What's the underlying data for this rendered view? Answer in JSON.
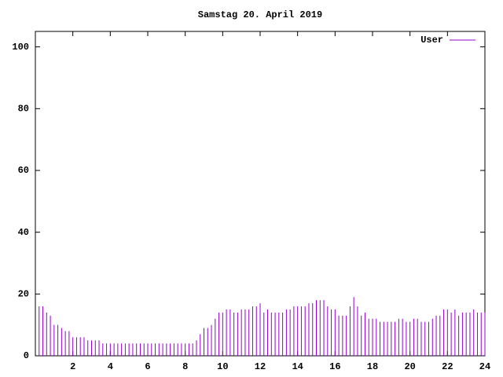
{
  "chart_data": {
    "type": "impulses",
    "title": "Samstag 20. April 2019",
    "x": [
      0.2,
      0.4,
      0.6,
      0.8,
      1.0,
      1.2,
      1.4,
      1.6,
      1.8,
      2.0,
      2.2,
      2.4,
      2.6,
      2.8,
      3.0,
      3.2,
      3.4,
      3.6,
      3.8,
      4.0,
      4.2,
      4.4,
      4.6,
      4.8,
      5.0,
      5.2,
      5.4,
      5.6,
      5.8,
      6.0,
      6.2,
      6.4,
      6.6,
      6.8,
      7.0,
      7.2,
      7.4,
      7.6,
      7.8,
      8.0,
      8.2,
      8.4,
      8.6,
      8.8,
      9.0,
      9.2,
      9.4,
      9.6,
      9.8,
      10.0,
      10.2,
      10.4,
      10.6,
      10.8,
      11.0,
      11.2,
      11.4,
      11.6,
      11.8,
      12.0,
      12.2,
      12.4,
      12.6,
      12.8,
      13.0,
      13.2,
      13.4,
      13.6,
      13.8,
      14.0,
      14.2,
      14.4,
      14.6,
      14.8,
      15.0,
      15.2,
      15.4,
      15.6,
      15.8,
      16.0,
      16.2,
      16.4,
      16.6,
      16.8,
      17.0,
      17.2,
      17.4,
      17.6,
      17.8,
      18.0,
      18.2,
      18.4,
      18.6,
      18.8,
      19.0,
      19.2,
      19.4,
      19.6,
      19.8,
      20.0,
      20.2,
      20.4,
      20.6,
      20.8,
      21.0,
      21.2,
      21.4,
      21.6,
      21.8,
      22.0,
      22.2,
      22.4,
      22.6,
      22.8,
      23.0,
      23.2,
      23.4,
      23.6,
      23.8,
      24.0
    ],
    "series": [
      {
        "name": "User",
        "color": "#9400d3",
        "values": [
          16,
          16,
          14,
          13,
          10,
          10,
          9,
          8,
          8,
          6,
          6,
          6,
          6,
          5,
          5,
          5,
          5,
          4,
          4,
          4,
          4,
          4,
          4,
          4,
          4,
          4,
          4,
          4,
          4,
          4,
          4,
          4,
          4,
          4,
          4,
          4,
          4,
          4,
          4,
          4,
          4,
          4,
          5,
          7,
          9,
          9,
          10,
          12,
          14,
          14,
          15,
          15,
          14,
          14,
          15,
          15,
          15,
          16,
          16,
          17,
          14,
          15,
          14,
          14,
          14,
          14,
          15,
          15,
          16,
          16,
          16,
          16,
          17,
          17,
          18,
          18,
          18,
          16,
          15,
          15,
          13,
          13,
          13,
          16,
          19,
          16,
          13,
          14,
          12,
          12,
          12,
          11,
          11,
          11,
          11,
          11,
          12,
          12,
          11,
          11,
          12,
          12,
          11,
          11,
          11,
          12,
          13,
          13,
          15,
          15,
          14,
          15,
          13,
          14,
          14,
          14,
          15,
          14,
          14,
          14
        ]
      }
    ],
    "xlim": [
      0,
      24
    ],
    "ylim": [
      0,
      105
    ],
    "xticks": [
      2,
      4,
      6,
      8,
      10,
      12,
      14,
      16,
      18,
      20,
      22,
      24
    ],
    "yticks": [
      0,
      20,
      40,
      60,
      80,
      100
    ],
    "legend": "top-right"
  }
}
